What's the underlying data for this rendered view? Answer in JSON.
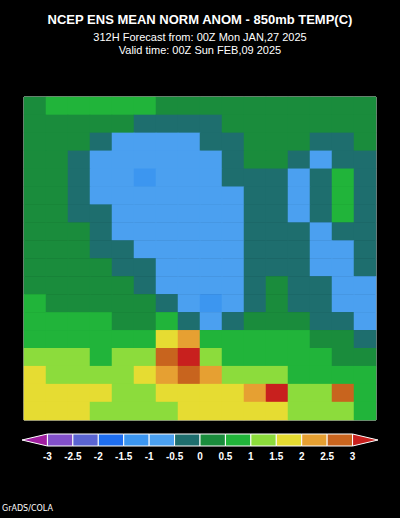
{
  "chart_data": {
    "type": "heatmap",
    "title": "NCEP ENS MEAN NORM ANOM - 850mb TEMP(C)",
    "subtitle": [
      "312H Forecast from: 00Z Mon JAN,27 2025",
      "Valid time: 00Z Sun FEB,09 2025"
    ],
    "annotations": [
      "GrADS/COLA"
    ],
    "tick_labels": false,
    "grid": false,
    "colorbar": {
      "range": [
        -3,
        3
      ],
      "ticks": [
        -3,
        -2.5,
        -2,
        -1.5,
        -1,
        -0.5,
        0,
        0.5,
        1,
        1.5,
        2,
        2.5,
        3
      ]
    },
    "colors": [
      "#a01ea0",
      "#8250c8",
      "#5a64d2",
      "#1e6ef0",
      "#3c96f0",
      "#4ba0f0",
      "#1e6e6e",
      "#1a8c3c",
      "#21b43a",
      "#8cdc3c",
      "#e6dc32",
      "#e6a032",
      "#c8641e",
      "#c8201e"
    ],
    "cells": [
      [
        0.3,
        0.7,
        0.7,
        0.6,
        0.6,
        0.5,
        0.3,
        0.2,
        0.1,
        0.2,
        0.3,
        0.3,
        0.2,
        0.2,
        0.2,
        0.2
      ],
      [
        0.2,
        0.4,
        0.4,
        0.3,
        0.1,
        -0.2,
        -0.3,
        -0.2,
        -0.1,
        0.1,
        0.2,
        0.1,
        0.1,
        0.2,
        0.2,
        0.2
      ],
      [
        0.1,
        0.2,
        0.1,
        -0.2,
        -0.6,
        -0.7,
        -0.7,
        -0.6,
        -0.4,
        -0.2,
        0.1,
        0.1,
        0,
        -0.2,
        -0.2,
        0
      ],
      [
        0,
        0.1,
        -0.2,
        -0.6,
        -0.8,
        -0.9,
        -0.8,
        -0.7,
        -0.6,
        -0.4,
        0,
        0,
        -0.3,
        -0.6,
        -0.3,
        -0.2
      ],
      [
        0,
        0,
        -0.3,
        -0.7,
        -0.8,
        -1.1,
        -0.9,
        -0.8,
        -0.7,
        -0.5,
        -0.2,
        -0.3,
        -0.6,
        -0.3,
        0.6,
        -0.3
      ],
      [
        0,
        0,
        -0.2,
        -0.6,
        -0.8,
        -0.9,
        -0.9,
        -0.8,
        -0.7,
        -0.6,
        -0.4,
        -0.4,
        -0.6,
        -0.2,
        0.6,
        -0.4
      ],
      [
        0,
        0,
        -0.1,
        -0.4,
        -0.7,
        -0.8,
        -0.8,
        -0.8,
        -0.7,
        -0.6,
        -0.5,
        -0.4,
        -0.6,
        -0.3,
        0.5,
        -0.3
      ],
      [
        0.1,
        0,
        0,
        -0.3,
        -0.6,
        -0.7,
        -0.8,
        -0.8,
        -0.7,
        -0.6,
        -0.5,
        -0.3,
        -0.5,
        -0.6,
        -0.3,
        -0.2
      ],
      [
        0.1,
        0.1,
        0,
        -0.2,
        -0.4,
        -0.6,
        -0.7,
        -0.8,
        -0.7,
        -0.6,
        -0.4,
        -0.2,
        -0.4,
        -0.6,
        -0.6,
        -0.4
      ],
      [
        0.2,
        0.1,
        0.1,
        0,
        -0.2,
        -0.5,
        -0.7,
        -0.8,
        -0.7,
        -0.6,
        -0.3,
        -0.1,
        -0.3,
        -0.6,
        -0.7,
        -0.5
      ],
      [
        0.3,
        0.2,
        0.2,
        0.1,
        0,
        -0.2,
        -0.6,
        -0.8,
        -0.7,
        -0.6,
        -0.2,
        0,
        -0.2,
        -0.5,
        -0.6,
        -0.6
      ],
      [
        0.5,
        0.4,
        0.3,
        0.3,
        0.2,
        0.1,
        -0.3,
        -0.8,
        -1.1,
        -0.6,
        -0.1,
        0.1,
        -0.1,
        -0.4,
        -0.6,
        -0.6
      ],
      [
        0.7,
        0.6,
        0.5,
        0.5,
        0.4,
        0.4,
        0.5,
        -0.2,
        -0.6,
        -0.4,
        0.1,
        0.3,
        0.2,
        -0.1,
        -0.4,
        -0.6
      ],
      [
        0.9,
        0.8,
        0.8,
        0.7,
        0.7,
        0.9,
        1.8,
        2.2,
        0.8,
        0.5,
        0.6,
        0.6,
        0.5,
        0.3,
        0,
        -0.3
      ],
      [
        1.1,
        1.1,
        1.0,
        0.9,
        1.0,
        1.3,
        2.6,
        3.2,
        1.4,
        0.8,
        0.8,
        0.7,
        0.7,
        0.6,
        0.4,
        0.1
      ],
      [
        1.5,
        1.4,
        1.3,
        1.2,
        1.2,
        1.6,
        2.3,
        2.7,
        2.1,
        1.2,
        1.0,
        1.3,
        0.9,
        0.8,
        0.7,
        0.5
      ],
      [
        1.7,
        1.8,
        1.7,
        1.5,
        1.3,
        1.4,
        1.5,
        1.8,
        1.9,
        1.8,
        2.4,
        3.1,
        1.3,
        1.4,
        2.6,
        0.8
      ],
      [
        1.6,
        1.7,
        1.6,
        1.4,
        1.3,
        1.3,
        1.4,
        1.5,
        1.5,
        1.6,
        1.7,
        1.6,
        1.3,
        1.2,
        1.4,
        0.9
      ]
    ]
  }
}
